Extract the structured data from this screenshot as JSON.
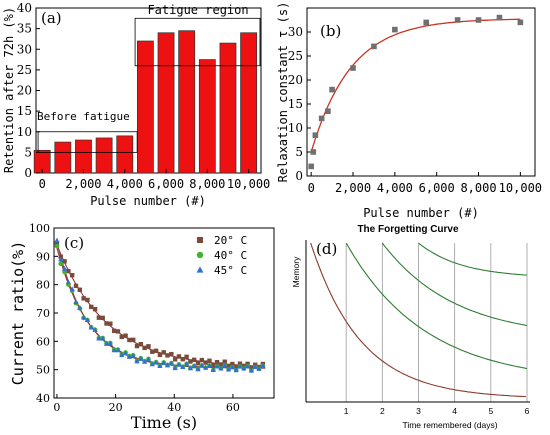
{
  "chart_data": [
    {
      "panel": "(a)",
      "type": "bar",
      "categories": [
        0,
        1000,
        2000,
        3000,
        4000,
        5000,
        6000,
        7000,
        8000,
        9000,
        10000
      ],
      "values": [
        5.5,
        7.5,
        8,
        8.5,
        9,
        32,
        34,
        34.5,
        27.5,
        31.5,
        34
      ],
      "xlabel": "Pulse number (#)",
      "ylabel": "Retention after 72h (%)",
      "xlim": [
        -300,
        10600
      ],
      "ylim": [
        0,
        40
      ],
      "xticks": [
        0,
        2000,
        4000,
        6000,
        8000,
        10000
      ],
      "xtick_labels": [
        "0",
        "2,000",
        "4,000",
        "6,000",
        "8,000",
        "10,000"
      ],
      "yticks": [
        0,
        5,
        10,
        15,
        20,
        25,
        30,
        35,
        40
      ],
      "annotations": [
        "Before fatigue",
        "Fatigue region"
      ],
      "colors": {
        "bar": "#ee1111",
        "bar_edge": "#333333"
      }
    },
    {
      "panel": "(b)",
      "type": "scatter",
      "x": [
        0,
        100,
        200,
        500,
        800,
        1000,
        2000,
        3000,
        4000,
        5500,
        7000,
        8000,
        9000,
        10000
      ],
      "y": [
        2,
        5,
        8.5,
        12,
        13.5,
        18,
        22.5,
        27,
        30.5,
        32,
        32.5,
        32.5,
        33,
        32
      ],
      "fit": "exponential",
      "xlabel": "Pulse number (#)",
      "ylabel": "Relaxation constant τ (s)",
      "xlim": [
        -200,
        10700
      ],
      "ylim": [
        0,
        35
      ],
      "xticks": [
        0,
        2000,
        4000,
        6000,
        8000,
        10000
      ],
      "xtick_labels": [
        "0",
        "2,000",
        "4,000",
        "6,000",
        "8,000",
        "10,000"
      ],
      "yticks": [
        0,
        5,
        10,
        15,
        20,
        25,
        30
      ],
      "colors": {
        "point": "#707070",
        "fit": "#cc3322"
      }
    },
    {
      "panel": "(c)",
      "type": "scatter",
      "xlabel": "Time (s)",
      "ylabel": "Current ratio(%)",
      "xlim": [
        -1,
        74
      ],
      "ylim": [
        40,
        100
      ],
      "xticks": [
        0,
        20,
        40,
        60
      ],
      "yticks": [
        40,
        50,
        60,
        70,
        80,
        90,
        100
      ],
      "series": [
        {
          "name": "20° C",
          "marker": "square",
          "color": "#7a4a3a",
          "tau": 17,
          "y0": 94
        },
        {
          "name": "40° C",
          "marker": "circle",
          "color": "#44b32a",
          "tau": 11,
          "y0": 93
        },
        {
          "name": "45° C",
          "marker": "triangle",
          "color": "#2f6fd6",
          "tau": 10.5,
          "y0": 95
        }
      ],
      "plateau": 50.5,
      "x_max": 71,
      "colors": {
        "fit": "#8b3a3a"
      }
    },
    {
      "panel": "(d)",
      "type": "line",
      "title": "The Forgetting Curve",
      "xlabel": "Time remembered (days)",
      "ylabel": "Memory",
      "xlim": [
        0,
        6
      ],
      "xticks": [
        1,
        2,
        3,
        4,
        5,
        6
      ],
      "colors": {
        "decay": "#8b3a2a",
        "review": "#2e7d32",
        "grid": "#9a9a9a"
      }
    }
  ]
}
